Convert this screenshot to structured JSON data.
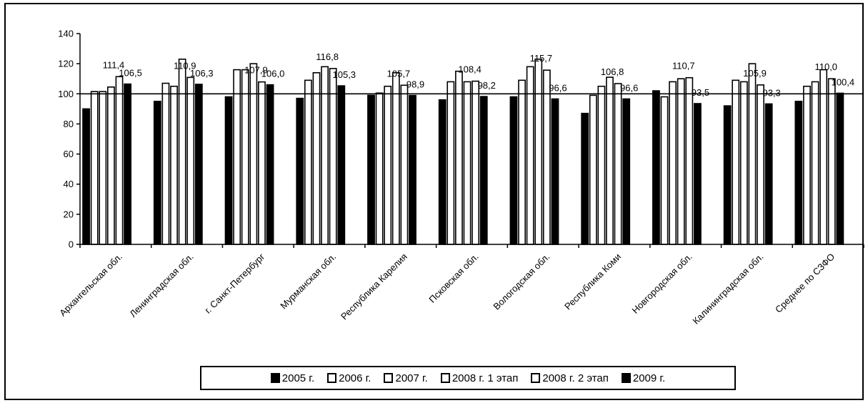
{
  "chart_data": {
    "type": "bar",
    "title": "",
    "xlabel": "",
    "ylabel": "",
    "ylim": [
      0,
      140
    ],
    "yticks": [
      0,
      20,
      40,
      60,
      80,
      100,
      120,
      140
    ],
    "reference_line": 100,
    "grid": false,
    "legend_position": "bottom",
    "categories": [
      "Архангельская обл.",
      "Ленинградская обл.",
      "г. Санкт-Петербург",
      "Мурманская обл.",
      "Республика Карелия",
      "Псковская обл.",
      "Вологодская обл.",
      "Республика Коми",
      "Новгородская обл.",
      "Калининградская обл.",
      "Среднее по СЗФО"
    ],
    "series": [
      {
        "name": "2005 г.",
        "fill": "#000000",
        "values": [
          90,
          95,
          98,
          97,
          99,
          96,
          98,
          87,
          102,
          92,
          95
        ]
      },
      {
        "name": "2006 г.",
        "fill": "#ffffff",
        "values": [
          101.5,
          107,
          116,
          109,
          100.5,
          108,
          109,
          99,
          98,
          109,
          105
        ]
      },
      {
        "name": "2007 г.",
        "fill": "#ffffff",
        "values": [
          101.5,
          105,
          116,
          114,
          105,
          115,
          118,
          105,
          108,
          108,
          108
        ]
      },
      {
        "name": "2008 г. 1 этап",
        "fill": "#ffffff",
        "values": [
          104.5,
          123,
          120,
          118,
          114,
          108,
          123,
          111,
          110,
          120,
          116
        ]
      },
      {
        "name": "2008 г. 2 этап",
        "fill": "#ffffff",
        "values": [
          111.4,
          110.9,
          107.9,
          116.8,
          105.7,
          108.4,
          115.7,
          106.8,
          110.7,
          105.9,
          110.0
        ]
      },
      {
        "name": "2009 г.",
        "fill": "#000000",
        "values": [
          106.5,
          106.3,
          106.0,
          105.3,
          98.9,
          98.2,
          96.6,
          96.6,
          93.5,
          93.3,
          100.4
        ]
      }
    ],
    "value_labels": {
      "2008 г. 2 этап": [
        "111,4",
        "110,9",
        "107,9",
        "116,8",
        "105,7",
        "108,4",
        "115,7",
        "106,8",
        "110,7",
        "105,9",
        "110,0"
      ],
      "2009 г.": [
        "106,5",
        "106,3",
        "106,0",
        "105,3",
        "98,9",
        "98,2",
        "96,6",
        "96,6",
        "93,5",
        "93,3",
        "100,4"
      ]
    }
  }
}
